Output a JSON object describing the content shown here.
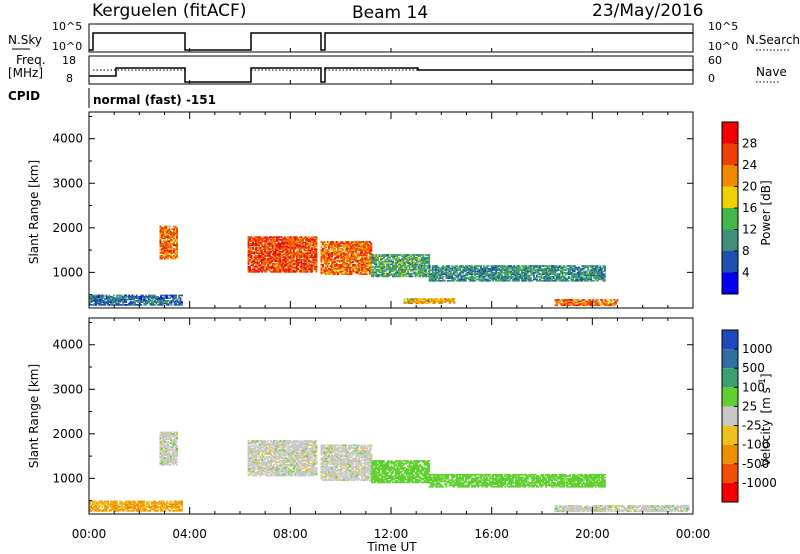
{
  "header": {
    "station": "Kerguelen (fitACF)",
    "beam": "Beam 14",
    "date": "23/May/2016"
  },
  "top_panels": {
    "nsky_label": "N.Sky",
    "nsky_axis": [
      "10^5",
      "10^0"
    ],
    "nsearch_label": "N.Search",
    "nsearch_axis": [
      "10^5",
      "10^0"
    ],
    "freq_label_1": "Freq.",
    "freq_label_2": "[MHz]",
    "freq_axis": [
      "18",
      "8"
    ],
    "nave_label": "Nave",
    "nave_axis": [
      "60",
      "0"
    ],
    "cpid_label": "CPID",
    "cpid_value": "normal (fast) -151"
  },
  "colorbars": {
    "power": {
      "label": "Power [dB]",
      "ticks": [
        "4",
        "8",
        "12",
        "16",
        "20",
        "24",
        "28"
      ],
      "colors": [
        "#0000f0",
        "#2050b0",
        "#3f8f7a",
        "#40b848",
        "#f0d000",
        "#f08800",
        "#f04000",
        "#f00000"
      ]
    },
    "velocity": {
      "label": "Velocity",
      "unit": "[m s",
      "unit_exp": "-1",
      "unit_close": "]",
      "ticks": [
        "1000",
        "500",
        "100",
        "25",
        "-25",
        "-100",
        "-500",
        "-1000"
      ],
      "colors": [
        "#2048c0",
        "#3070a0",
        "#3aa070",
        "#60d030",
        "#c8c8c8",
        "#f0c020",
        "#f09000",
        "#f05000",
        "#f00000"
      ]
    }
  },
  "chart_data": [
    {
      "type": "heatmap",
      "title": "",
      "variable": "Power",
      "xlabel": "Time UT",
      "ylabel": "Slant Range [km]",
      "x_ticks": [
        "00:00",
        "04:00",
        "08:00",
        "12:00",
        "16:00",
        "20:00",
        "00:00"
      ],
      "y_ticks": [
        1000,
        2000,
        3000,
        4000
      ],
      "xlim_hours": [
        0,
        24
      ],
      "ylim_km": [
        200,
        4600
      ],
      "data_gaps_hours": [
        [
          3.7,
          6.3
        ],
        [
          9.1,
          9.2
        ]
      ],
      "regions": [
        {
          "t0": 0.0,
          "t1": 3.7,
          "r0": 260,
          "r1": 480,
          "value_db": 8
        },
        {
          "t0": 2.8,
          "t1": 3.5,
          "r0": 1300,
          "r1": 2050,
          "value_db": 24
        },
        {
          "t0": 6.3,
          "t1": 9.0,
          "r0": 1000,
          "r1": 1800,
          "value_db": 26
        },
        {
          "t0": 9.2,
          "t1": 11.2,
          "r0": 950,
          "r1": 1700,
          "value_db": 24
        },
        {
          "t0": 11.2,
          "t1": 13.5,
          "r0": 900,
          "r1": 1400,
          "value_db": 12
        },
        {
          "t0": 13.5,
          "t1": 20.5,
          "r0": 800,
          "r1": 1150,
          "value_db": 10
        },
        {
          "t0": 18.5,
          "t1": 21.0,
          "r0": 250,
          "r1": 380,
          "value_db": 24
        },
        {
          "t0": 12.5,
          "t1": 14.5,
          "r0": 300,
          "r1": 420,
          "value_db": 20
        }
      ]
    },
    {
      "type": "heatmap",
      "title": "",
      "variable": "Velocity",
      "xlabel": "Time UT",
      "ylabel": "Slant Range [km]",
      "x_ticks": [
        "00:00",
        "04:00",
        "08:00",
        "12:00",
        "16:00",
        "20:00",
        "00:00"
      ],
      "y_ticks": [
        1000,
        2000,
        3000,
        4000
      ],
      "xlim_hours": [
        0,
        24
      ],
      "ylim_km": [
        200,
        4600
      ],
      "data_gaps_hours": [
        [
          3.7,
          6.3
        ],
        [
          9.1,
          9.2
        ]
      ],
      "regions": [
        {
          "t0": 0.0,
          "t1": 3.7,
          "r0": 260,
          "r1": 480,
          "value_ms": -100
        },
        {
          "t0": 2.8,
          "t1": 3.5,
          "r0": 1300,
          "r1": 2050,
          "value_ms": 0
        },
        {
          "t0": 6.3,
          "t1": 9.0,
          "r0": 1050,
          "r1": 1850,
          "value_ms": 0
        },
        {
          "t0": 9.2,
          "t1": 11.2,
          "r0": 950,
          "r1": 1750,
          "value_ms": 0
        },
        {
          "t0": 11.2,
          "t1": 13.5,
          "r0": 900,
          "r1": 1400,
          "value_ms": 60
        },
        {
          "t0": 13.5,
          "t1": 20.5,
          "r0": 800,
          "r1": 1100,
          "value_ms": 60
        },
        {
          "t0": 18.5,
          "t1": 23.8,
          "r0": 250,
          "r1": 400,
          "value_ms": 0
        }
      ]
    }
  ]
}
